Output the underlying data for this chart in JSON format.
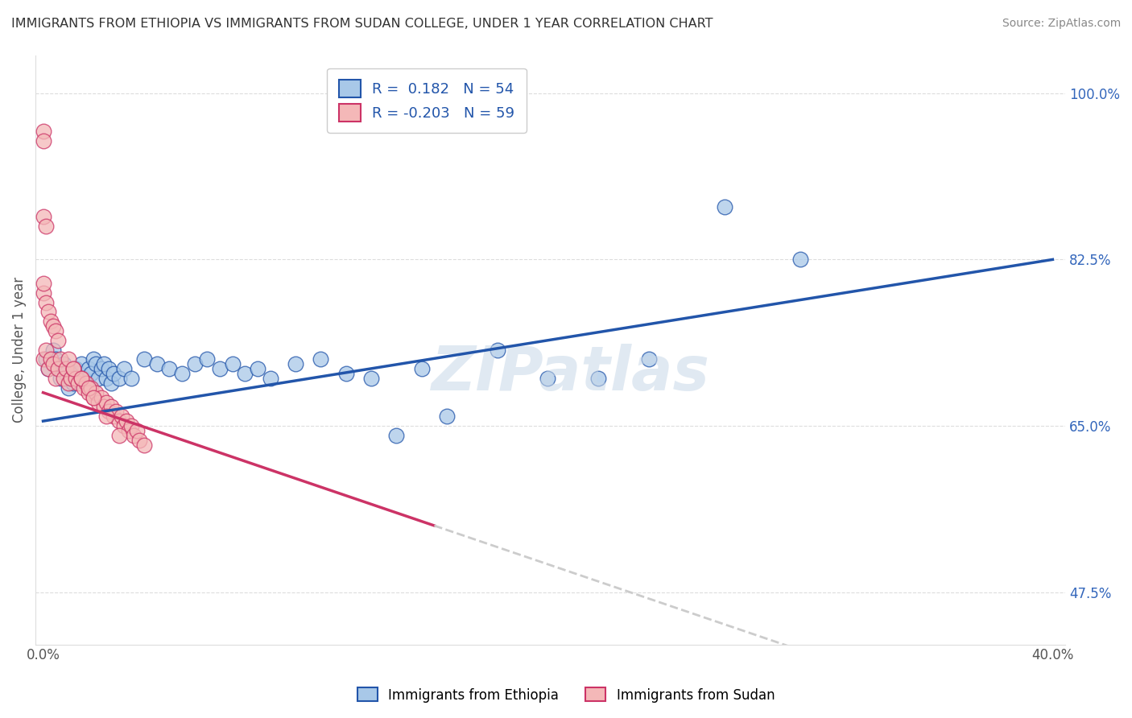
{
  "title": "IMMIGRANTS FROM ETHIOPIA VS IMMIGRANTS FROM SUDAN COLLEGE, UNDER 1 YEAR CORRELATION CHART",
  "source": "Source: ZipAtlas.com",
  "ylabel": "College, Under 1 year",
  "legend_ethiopia": "Immigrants from Ethiopia",
  "legend_sudan": "Immigrants from Sudan",
  "R_ethiopia": 0.182,
  "N_ethiopia": 54,
  "R_sudan": -0.203,
  "N_sudan": 59,
  "xlim": [
    -0.003,
    0.405
  ],
  "ylim": [
    0.42,
    1.04
  ],
  "yticks_right": [
    1.0,
    0.825,
    0.65,
    0.475
  ],
  "ytick_right_labels": [
    "100.0%",
    "82.5%",
    "65.0%",
    "47.5%"
  ],
  "color_ethiopia": "#a8c8e8",
  "color_sudan": "#f4b8b8",
  "color_trend_ethiopia": "#2255aa",
  "color_trend_sudan": "#cc3366",
  "color_trend_dashed": "#cccccc",
  "ethiopia_x": [
    0.001,
    0.002,
    0.004,
    0.005,
    0.006,
    0.007,
    0.008,
    0.009,
    0.01,
    0.011,
    0.012,
    0.013,
    0.014,
    0.015,
    0.016,
    0.017,
    0.018,
    0.019,
    0.02,
    0.021,
    0.022,
    0.023,
    0.024,
    0.025,
    0.026,
    0.027,
    0.028,
    0.03,
    0.032,
    0.035,
    0.04,
    0.045,
    0.05,
    0.055,
    0.06,
    0.065,
    0.07,
    0.075,
    0.08,
    0.085,
    0.09,
    0.1,
    0.11,
    0.12,
    0.13,
    0.14,
    0.15,
    0.16,
    0.18,
    0.2,
    0.22,
    0.24,
    0.27,
    0.3
  ],
  "ethiopia_y": [
    0.72,
    0.71,
    0.73,
    0.72,
    0.71,
    0.7,
    0.715,
    0.705,
    0.69,
    0.7,
    0.695,
    0.71,
    0.705,
    0.715,
    0.7,
    0.695,
    0.71,
    0.705,
    0.72,
    0.715,
    0.7,
    0.71,
    0.715,
    0.7,
    0.71,
    0.695,
    0.705,
    0.7,
    0.71,
    0.7,
    0.72,
    0.715,
    0.71,
    0.705,
    0.715,
    0.72,
    0.71,
    0.715,
    0.705,
    0.71,
    0.7,
    0.715,
    0.72,
    0.705,
    0.7,
    0.64,
    0.71,
    0.66,
    0.73,
    0.7,
    0.7,
    0.72,
    0.88,
    0.825
  ],
  "sudan_x": [
    0.0,
    0.001,
    0.002,
    0.003,
    0.004,
    0.005,
    0.006,
    0.007,
    0.008,
    0.009,
    0.01,
    0.011,
    0.012,
    0.013,
    0.014,
    0.015,
    0.016,
    0.017,
    0.018,
    0.019,
    0.02,
    0.021,
    0.022,
    0.023,
    0.024,
    0.025,
    0.026,
    0.027,
    0.028,
    0.029,
    0.03,
    0.031,
    0.032,
    0.033,
    0.034,
    0.035,
    0.036,
    0.037,
    0.038,
    0.04,
    0.0,
    0.0,
    0.001,
    0.002,
    0.003,
    0.004,
    0.005,
    0.006,
    0.01,
    0.012,
    0.015,
    0.018,
    0.02,
    0.025,
    0.03,
    0.0,
    0.0,
    0.0,
    0.001
  ],
  "sudan_y": [
    0.72,
    0.73,
    0.71,
    0.72,
    0.715,
    0.7,
    0.71,
    0.72,
    0.7,
    0.71,
    0.695,
    0.7,
    0.71,
    0.7,
    0.695,
    0.7,
    0.69,
    0.695,
    0.685,
    0.69,
    0.68,
    0.685,
    0.675,
    0.68,
    0.67,
    0.675,
    0.665,
    0.67,
    0.66,
    0.665,
    0.655,
    0.66,
    0.65,
    0.655,
    0.645,
    0.65,
    0.64,
    0.645,
    0.635,
    0.63,
    0.79,
    0.8,
    0.78,
    0.77,
    0.76,
    0.755,
    0.75,
    0.74,
    0.72,
    0.71,
    0.7,
    0.69,
    0.68,
    0.66,
    0.64,
    0.96,
    0.95,
    0.87,
    0.86
  ]
}
